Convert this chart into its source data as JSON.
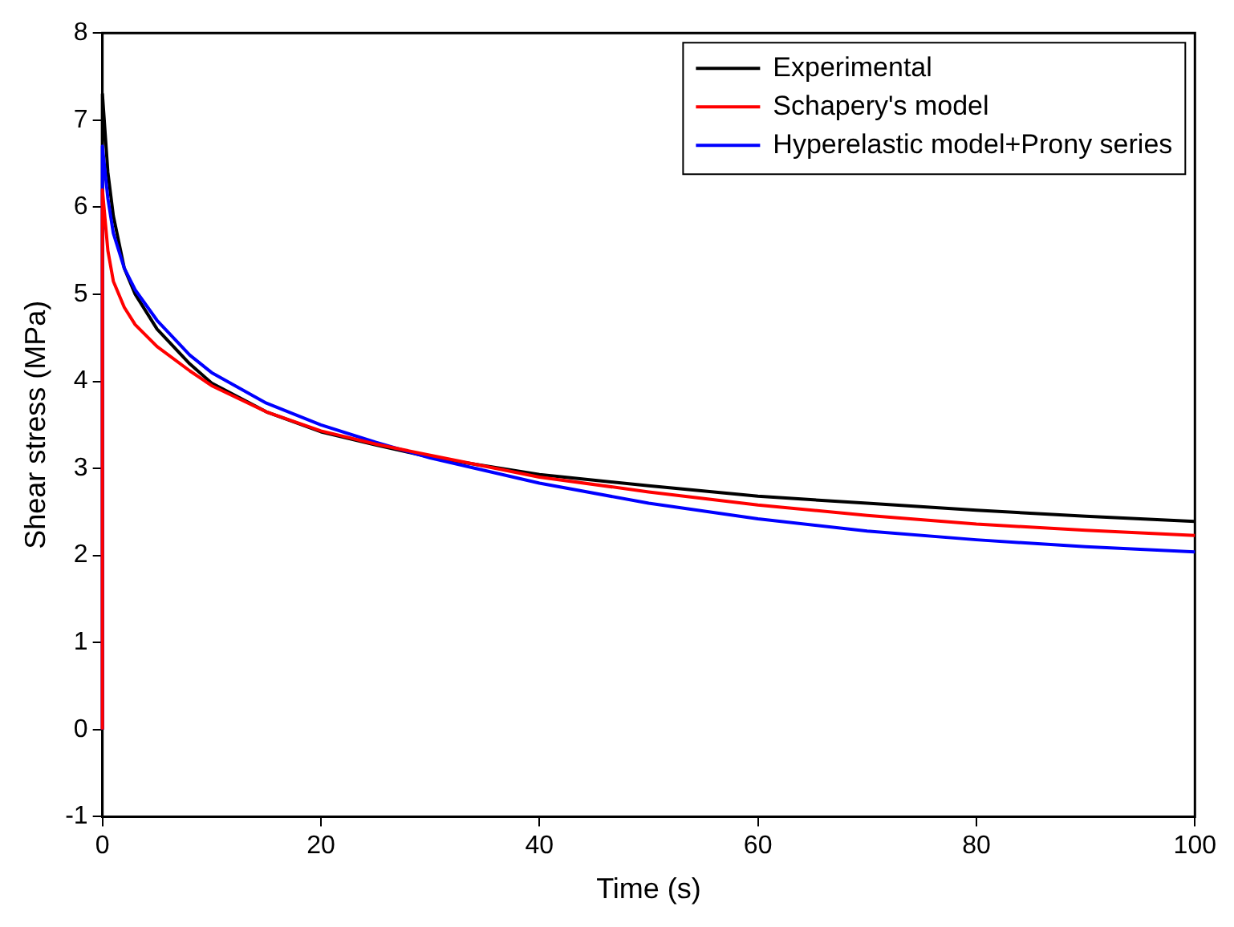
{
  "chart_data": {
    "type": "line",
    "xlabel": "Time (s)",
    "ylabel": "Shear stress (MPa)",
    "xlim": [
      0,
      100
    ],
    "xticks": [
      0,
      20,
      40,
      60,
      80,
      100
    ],
    "ylim": [
      -1,
      8
    ],
    "yticks": [
      -1,
      0,
      1,
      2,
      3,
      4,
      5,
      6,
      7,
      8
    ],
    "grid": false,
    "legend": "top right",
    "marker": "none",
    "line_style": "solid",
    "series": [
      {
        "name": "Experimental",
        "color": "#000000",
        "x": [
          0,
          0,
          0.5,
          1,
          2,
          3,
          5,
          8,
          10,
          15,
          20,
          25,
          30,
          40,
          50,
          60,
          70,
          80,
          90,
          100
        ],
        "values": [
          0,
          7.3,
          6.4,
          5.9,
          5.3,
          5.0,
          4.6,
          4.2,
          3.98,
          3.65,
          3.42,
          3.27,
          3.13,
          2.93,
          2.8,
          2.68,
          2.6,
          2.52,
          2.45,
          2.39
        ]
      },
      {
        "name": "Schapery's model",
        "color": "#ff0000",
        "x": [
          0,
          0,
          0.5,
          1,
          2,
          3,
          5,
          8,
          10,
          15,
          20,
          25,
          30,
          40,
          50,
          60,
          70,
          80,
          90,
          100
        ],
        "values": [
          0,
          6.2,
          5.5,
          5.15,
          4.85,
          4.65,
          4.4,
          4.12,
          3.95,
          3.65,
          3.43,
          3.28,
          3.15,
          2.9,
          2.73,
          2.58,
          2.46,
          2.36,
          2.29,
          2.23
        ]
      },
      {
        "name": "Hyperelastic model+Prony series",
        "color": "#0000ff",
        "x": [
          0,
          0,
          0.5,
          1,
          2,
          3,
          5,
          8,
          10,
          15,
          20,
          25,
          30,
          40,
          50,
          60,
          70,
          80,
          90,
          100
        ],
        "values": [
          0,
          6.7,
          6.1,
          5.7,
          5.3,
          5.05,
          4.7,
          4.3,
          4.1,
          3.75,
          3.5,
          3.3,
          3.12,
          2.83,
          2.6,
          2.42,
          2.28,
          2.18,
          2.1,
          2.04
        ]
      }
    ]
  }
}
